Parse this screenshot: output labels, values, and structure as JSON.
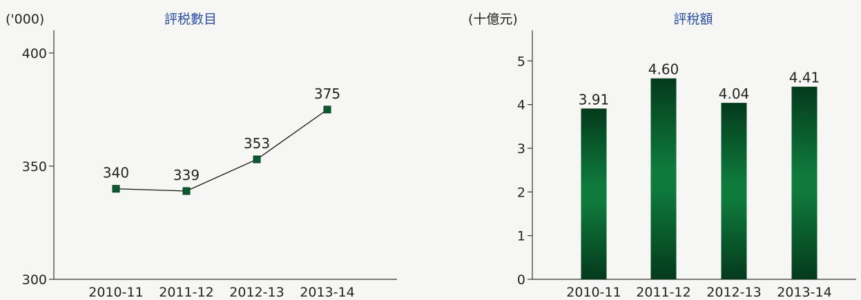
{
  "chart_data": [
    {
      "type": "line",
      "title": "評税數目",
      "ylabel": "('000)",
      "categories": [
        "2010-11",
        "2011-12",
        "2012-13",
        "2013-14"
      ],
      "values": [
        340,
        339,
        353,
        375
      ],
      "data_labels": [
        "340",
        "339",
        "353",
        "375"
      ],
      "ylim": [
        300,
        410
      ],
      "yticks": [
        300,
        350,
        400
      ],
      "ytick_labels": [
        "300",
        "350",
        "400"
      ],
      "grid": false,
      "colors": {
        "line": "#111111",
        "marker": "#0d5a2e"
      }
    },
    {
      "type": "bar",
      "title": "評稅額",
      "ylabel": "(十億元)",
      "categories": [
        "2010-11",
        "2011-12",
        "2012-13",
        "2013-14"
      ],
      "values": [
        3.91,
        4.6,
        4.04,
        4.41
      ],
      "data_labels": [
        "3.91",
        "4.60",
        "4.04",
        "4.41"
      ],
      "ylim": [
        0,
        5.7
      ],
      "yticks": [
        0,
        1,
        2,
        3,
        4,
        5
      ],
      "ytick_labels": [
        "0",
        "1",
        "2",
        "3",
        "4",
        "5"
      ],
      "grid": false,
      "colors": {
        "bar_dark": "#043a1c",
        "bar_light": "#0f7a3c"
      }
    }
  ]
}
